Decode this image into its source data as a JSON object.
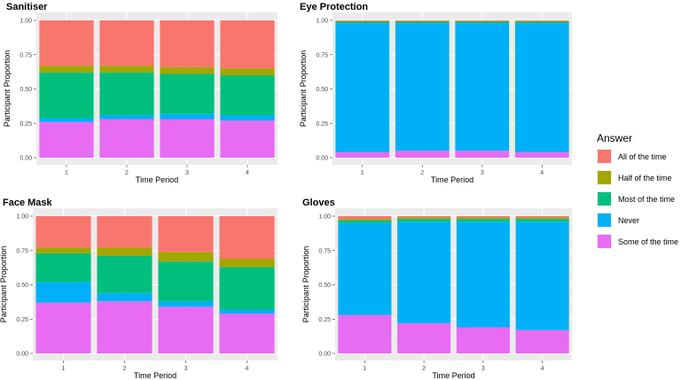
{
  "legend": {
    "title": "Answer",
    "entries": [
      {
        "label": "All of the time",
        "color": "#F8766D"
      },
      {
        "label": "Half of the time",
        "color": "#A3A500"
      },
      {
        "label": "Most of the time",
        "color": "#00BF7D"
      },
      {
        "label": "Never",
        "color": "#00B0F6"
      },
      {
        "label": "Some of the time",
        "color": "#E76BF3"
      }
    ]
  },
  "chart_data": [
    {
      "type": "bar",
      "stacked": true,
      "title": "Sanitiser",
      "xlabel": "Time Period",
      "ylabel": "Participant Proportion",
      "categories": [
        "1",
        "2",
        "3",
        "4"
      ],
      "yticks": [
        "0.00",
        "0.25",
        "0.50",
        "0.75",
        "1.00"
      ],
      "ylim": [
        0,
        1
      ],
      "series": [
        {
          "name": "Some of the time",
          "values": [
            0.26,
            0.28,
            0.28,
            0.27
          ]
        },
        {
          "name": "Never",
          "values": [
            0.03,
            0.03,
            0.04,
            0.04
          ]
        },
        {
          "name": "Most of the time",
          "values": [
            0.33,
            0.31,
            0.29,
            0.29
          ]
        },
        {
          "name": "Half of the time",
          "values": [
            0.05,
            0.05,
            0.05,
            0.05
          ]
        },
        {
          "name": "All of the time",
          "values": [
            0.33,
            0.33,
            0.34,
            0.35
          ]
        }
      ]
    },
    {
      "type": "bar",
      "stacked": true,
      "title": "Eye Protection",
      "xlabel": "Time Period",
      "ylabel": "Participant Proportion",
      "categories": [
        "1",
        "2",
        "3",
        "4"
      ],
      "yticks": [
        "0.00",
        "0.25",
        "0.50",
        "0.75",
        "1.00"
      ],
      "ylim": [
        0,
        1
      ],
      "series": [
        {
          "name": "Some of the time",
          "values": [
            0.04,
            0.05,
            0.05,
            0.04
          ]
        },
        {
          "name": "Never",
          "values": [
            0.94,
            0.93,
            0.93,
            0.94
          ]
        },
        {
          "name": "Most of the time",
          "values": [
            0.01,
            0.01,
            0.01,
            0.01
          ]
        },
        {
          "name": "Half of the time",
          "values": [
            0.005,
            0.005,
            0.005,
            0.005
          ]
        },
        {
          "name": "All of the time",
          "values": [
            0.005,
            0.005,
            0.005,
            0.005
          ]
        }
      ]
    },
    {
      "type": "bar",
      "stacked": true,
      "title": "Face Mask",
      "xlabel": "Time Period",
      "ylabel": "Participant Proportion",
      "categories": [
        "1",
        "2",
        "3",
        "4"
      ],
      "yticks": [
        "0.00",
        "0.25",
        "0.50",
        "0.75",
        "1.00"
      ],
      "ylim": [
        0,
        1
      ],
      "series": [
        {
          "name": "Some of the time",
          "values": [
            0.37,
            0.38,
            0.34,
            0.29
          ]
        },
        {
          "name": "Never",
          "values": [
            0.15,
            0.06,
            0.04,
            0.03
          ]
        },
        {
          "name": "Most of the time",
          "values": [
            0.21,
            0.27,
            0.29,
            0.31
          ]
        },
        {
          "name": "Half of the time",
          "values": [
            0.04,
            0.06,
            0.07,
            0.06
          ]
        },
        {
          "name": "All of the time",
          "values": [
            0.23,
            0.23,
            0.26,
            0.31
          ]
        }
      ]
    },
    {
      "type": "bar",
      "stacked": true,
      "title": "Gloves",
      "xlabel": "Time Period",
      "ylabel": "Participant Proportion",
      "categories": [
        "1",
        "2",
        "3",
        "4"
      ],
      "yticks": [
        "0.00",
        "0.25",
        "0.50",
        "0.75",
        "1.00"
      ],
      "ylim": [
        0,
        1
      ],
      "series": [
        {
          "name": "Some of the time",
          "values": [
            0.28,
            0.22,
            0.19,
            0.17
          ]
        },
        {
          "name": "Never",
          "values": [
            0.67,
            0.74,
            0.77,
            0.79
          ]
        },
        {
          "name": "Most of the time",
          "values": [
            0.02,
            0.02,
            0.02,
            0.02
          ]
        },
        {
          "name": "Half of the time",
          "values": [
            0.01,
            0.01,
            0.01,
            0.01
          ]
        },
        {
          "name": "All of the time",
          "values": [
            0.02,
            0.01,
            0.01,
            0.01
          ]
        }
      ]
    }
  ]
}
